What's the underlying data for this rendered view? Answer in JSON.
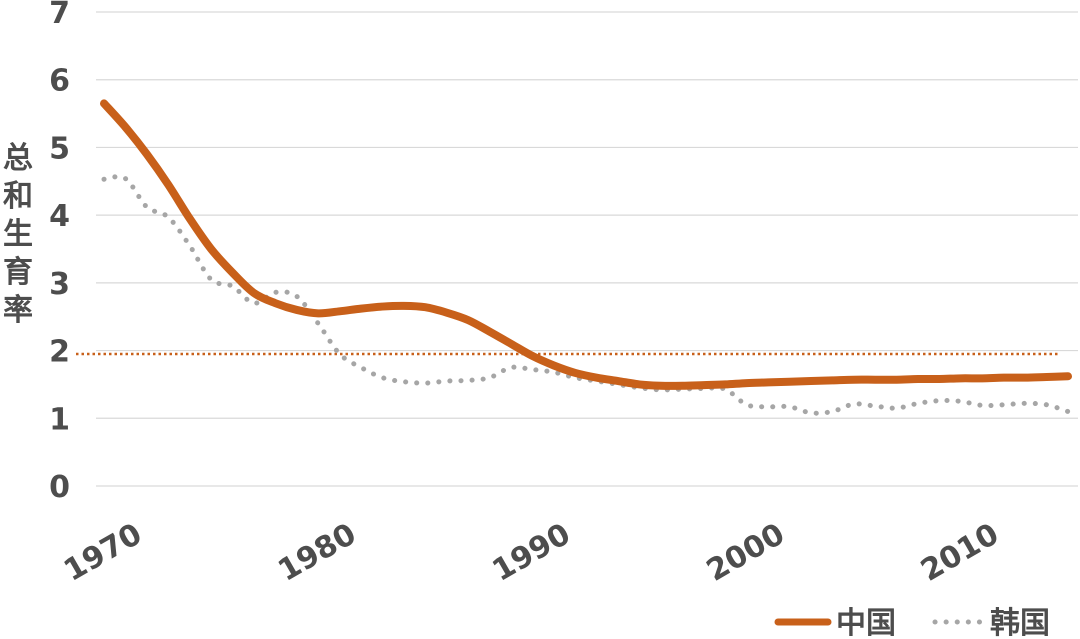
{
  "chart_data": {
    "type": "line",
    "ylabel": "总和生育率",
    "xlabel": "",
    "xlim": [
      1968,
      2015.5
    ],
    "ylim": [
      0,
      7
    ],
    "yticks": [
      "0",
      "1",
      "2",
      "3",
      "4",
      "5",
      "6",
      "7"
    ],
    "xticks": [
      "1970",
      "1980",
      "1990",
      "2000",
      "2010"
    ],
    "grid": true,
    "legend_position": "bottom-right",
    "colors": {
      "china": "#c8601a",
      "korea": "#a6a6a6",
      "reference": "#c8601a",
      "grid": "#d9d9d9",
      "text": "#4d4d4d"
    },
    "reference_line": {
      "y": 1.95,
      "x_start": 1967,
      "x_end": 2015
    },
    "series": [
      {
        "name": "中国",
        "style": "solid",
        "x": [
          1970,
          1971,
          1972,
          1973,
          1974,
          1975,
          1976,
          1977,
          1978,
          1979,
          1980,
          1981,
          1982,
          1983,
          1984,
          1985,
          1986,
          1987,
          1988,
          1989,
          1990,
          1991,
          1992,
          1993,
          1994,
          1995,
          1996,
          1997,
          1998,
          1999,
          2000,
          2001,
          2002,
          2003,
          2004,
          2005,
          2006,
          2007,
          2008,
          2009,
          2010,
          2011,
          2012,
          2013,
          2014,
          2015
        ],
        "values": [
          5.65,
          5.3,
          4.9,
          4.45,
          3.95,
          3.5,
          3.15,
          2.85,
          2.7,
          2.6,
          2.55,
          2.58,
          2.62,
          2.65,
          2.66,
          2.64,
          2.56,
          2.45,
          2.28,
          2.1,
          1.92,
          1.78,
          1.67,
          1.6,
          1.55,
          1.5,
          1.48,
          1.48,
          1.49,
          1.5,
          1.52,
          1.53,
          1.54,
          1.55,
          1.56,
          1.57,
          1.57,
          1.57,
          1.58,
          1.58,
          1.59,
          1.59,
          1.6,
          1.6,
          1.61,
          1.62
        ]
      },
      {
        "name": "韩国",
        "style": "dotted",
        "x": [
          1970,
          1971,
          1972,
          1973,
          1974,
          1975,
          1976,
          1977,
          1978,
          1979,
          1980,
          1981,
          1982,
          1983,
          1984,
          1985,
          1986,
          1987,
          1988,
          1989,
          1990,
          1991,
          1992,
          1993,
          1994,
          1995,
          1996,
          1997,
          1998,
          1999,
          2000,
          2001,
          2002,
          2003,
          2004,
          2005,
          2006,
          2007,
          2008,
          2009,
          2010,
          2011,
          2012,
          2013,
          2014,
          2015
        ],
        "values": [
          4.53,
          4.54,
          4.12,
          3.97,
          3.55,
          3.05,
          2.95,
          2.7,
          2.86,
          2.8,
          2.4,
          1.95,
          1.75,
          1.6,
          1.54,
          1.52,
          1.55,
          1.56,
          1.6,
          1.75,
          1.72,
          1.68,
          1.6,
          1.55,
          1.5,
          1.45,
          1.42,
          1.43,
          1.44,
          1.43,
          1.2,
          1.17,
          1.17,
          1.08,
          1.1,
          1.21,
          1.18,
          1.15,
          1.22,
          1.26,
          1.25,
          1.19,
          1.2,
          1.22,
          1.2,
          1.1
        ]
      }
    ]
  }
}
